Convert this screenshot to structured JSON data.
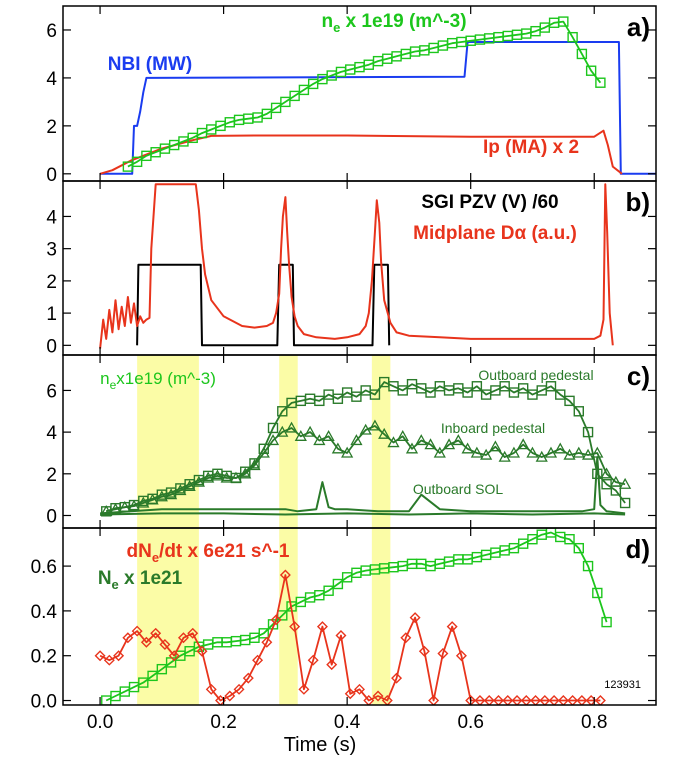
{
  "figure": {
    "xlabel": "Time (s)",
    "x_ticks": [
      0.0,
      0.2,
      0.4,
      0.6,
      0.8
    ],
    "x_tick_labels": [
      "0.0",
      "0.2",
      "0.4",
      "0.6",
      "0.8"
    ],
    "xlim": [
      -0.06,
      0.9
    ],
    "shot_number": "123931",
    "highlight_bands": [
      [
        0.06,
        0.16
      ],
      [
        0.29,
        0.32
      ],
      [
        0.44,
        0.47
      ]
    ],
    "colors": {
      "blue": "#1a3cf0",
      "green": "#1cc61c",
      "red": "#e8341c",
      "darkgreen": "#2a7a2a",
      "black": "#000000",
      "highlight": "#fbfca6"
    }
  },
  "chart_data": [
    {
      "panel": "a)",
      "type": "line",
      "ylim": [
        -0.3,
        7.0
      ],
      "y_ticks": [
        0,
        2,
        4,
        6
      ],
      "y_tick_labels": [
        "0",
        "2",
        "4",
        "6"
      ],
      "labels": [
        {
          "text": "n",
          "sub": "e",
          "rest": " x 1e19 (m^-3)",
          "color": "#1cc61c"
        },
        {
          "text": "NBI (MW)",
          "sub": "",
          "rest": "",
          "color": "#1a3cf0"
        },
        {
          "text": "Ip (MA) x 2",
          "sub": "",
          "rest": "",
          "color": "#e8341c"
        }
      ],
      "series": [
        {
          "color": "#1a3cf0",
          "style": "line",
          "x": [
            0.0,
            0.052,
            0.055,
            0.06,
            0.065,
            0.07,
            0.075,
            0.08,
            0.59,
            0.595,
            0.84,
            0.843,
            0.9
          ],
          "y": [
            0.0,
            0.0,
            2.0,
            2.0,
            2.6,
            3.4,
            4.0,
            4.0,
            4.05,
            5.5,
            5.5,
            0.0,
            0.0
          ]
        },
        {
          "color": "#e8341c",
          "style": "line",
          "x": [
            0.0,
            0.02,
            0.05,
            0.1,
            0.15,
            0.18,
            0.25,
            0.4,
            0.6,
            0.8,
            0.815,
            0.822,
            0.83,
            0.845
          ],
          "y": [
            0.0,
            0.15,
            0.55,
            1.05,
            1.4,
            1.58,
            1.6,
            1.6,
            1.55,
            1.55,
            1.8,
            1.2,
            0.3,
            0.0
          ]
        },
        {
          "color": "#1cc61c",
          "style": "squares",
          "x": [
            0.045,
            0.06,
            0.075,
            0.09,
            0.105,
            0.12,
            0.135,
            0.15,
            0.165,
            0.18,
            0.195,
            0.21,
            0.225,
            0.24,
            0.255,
            0.27,
            0.285,
            0.3,
            0.315,
            0.33,
            0.345,
            0.36,
            0.375,
            0.39,
            0.405,
            0.42,
            0.435,
            0.45,
            0.465,
            0.48,
            0.495,
            0.51,
            0.525,
            0.54,
            0.555,
            0.57,
            0.585,
            0.6,
            0.615,
            0.63,
            0.645,
            0.66,
            0.675,
            0.69,
            0.705,
            0.72,
            0.735,
            0.75,
            0.765,
            0.78,
            0.795,
            0.81
          ],
          "y": [
            0.3,
            0.5,
            0.75,
            0.9,
            1.05,
            1.2,
            1.35,
            1.5,
            1.7,
            1.85,
            2.0,
            2.15,
            2.25,
            2.3,
            2.35,
            2.5,
            2.75,
            3.0,
            3.25,
            3.5,
            3.75,
            3.95,
            4.1,
            4.25,
            4.35,
            4.45,
            4.55,
            4.7,
            4.8,
            4.9,
            5.0,
            5.1,
            5.15,
            5.25,
            5.35,
            5.45,
            5.5,
            5.55,
            5.6,
            5.65,
            5.7,
            5.75,
            5.8,
            5.85,
            5.95,
            6.1,
            6.3,
            6.35,
            5.7,
            5.0,
            4.3,
            3.8
          ]
        }
      ]
    },
    {
      "panel": "b)",
      "type": "line",
      "ylim": [
        -0.3,
        5.1
      ],
      "y_ticks": [
        0,
        1,
        2,
        3,
        4
      ],
      "y_tick_labels": [
        "0",
        "1",
        "2",
        "3",
        "4"
      ],
      "labels": [
        {
          "text": "SGI PZV (V) /60",
          "sub": "",
          "rest": "",
          "color": "#000000"
        },
        {
          "text": "Midplane D",
          "sub": "",
          "rest": "α (a.u.)",
          "color": "#e8341c"
        }
      ],
      "series": [
        {
          "color": "#000000",
          "style": "line",
          "x": [
            0.06,
            0.062,
            0.163,
            0.165,
            0.287,
            0.29,
            0.312,
            0.314,
            0.441,
            0.444,
            0.466,
            0.468
          ],
          "y": [
            0.0,
            2.5,
            2.5,
            0.0,
            0.0,
            2.5,
            2.5,
            0.0,
            0.0,
            2.5,
            2.5,
            0.0
          ]
        },
        {
          "color": "#e8341c",
          "style": "line",
          "x": [
            0.0,
            0.005,
            0.01,
            0.015,
            0.02,
            0.025,
            0.03,
            0.035,
            0.04,
            0.045,
            0.05,
            0.055,
            0.06,
            0.065,
            0.07,
            0.075,
            0.08,
            0.083,
            0.09,
            0.1,
            0.13,
            0.155,
            0.16,
            0.165,
            0.17,
            0.18,
            0.2,
            0.23,
            0.25,
            0.27,
            0.28,
            0.285,
            0.29,
            0.293,
            0.296,
            0.3,
            0.303,
            0.306,
            0.31,
            0.315,
            0.32,
            0.33,
            0.35,
            0.38,
            0.4,
            0.42,
            0.43,
            0.435,
            0.44,
            0.445,
            0.448,
            0.452,
            0.455,
            0.46,
            0.47,
            0.48,
            0.5,
            0.55,
            0.6,
            0.65,
            0.7,
            0.75,
            0.8,
            0.81,
            0.815,
            0.818,
            0.821,
            0.825,
            0.83
          ],
          "y": [
            -0.1,
            0.8,
            0.2,
            1.1,
            0.4,
            1.4,
            0.5,
            1.2,
            0.6,
            1.5,
            0.7,
            1.3,
            0.6,
            0.9,
            0.7,
            0.8,
            0.85,
            3.0,
            5.0,
            5.0,
            5.0,
            5.0,
            4.2,
            3.0,
            2.2,
            1.4,
            0.9,
            0.6,
            0.55,
            0.6,
            0.7,
            1.0,
            1.6,
            3.0,
            4.0,
            4.6,
            3.5,
            2.5,
            1.5,
            0.9,
            0.6,
            0.35,
            0.25,
            0.2,
            0.25,
            0.35,
            0.6,
            1.0,
            2.0,
            3.5,
            4.5,
            3.8,
            2.6,
            1.4,
            0.7,
            0.4,
            0.3,
            0.25,
            0.2,
            0.2,
            0.2,
            0.2,
            0.2,
            0.3,
            0.8,
            5.0,
            3.5,
            1.0,
            0.0
          ]
        }
      ]
    },
    {
      "panel": "c)",
      "type": "line",
      "ylim": [
        -0.6,
        7.7
      ],
      "y_ticks": [
        0,
        2,
        4,
        6
      ],
      "y_tick_labels": [
        "0",
        "2",
        "4",
        "6"
      ],
      "labels": [
        {
          "text": "n",
          "sub": "e",
          "rest": "x1e19 (m^-3)",
          "color": "#1cc61c"
        },
        {
          "text": "Outboard pedestal",
          "sub": "",
          "rest": "",
          "color": "#2a7a2a"
        },
        {
          "text": "Inboard pedestal",
          "sub": "",
          "rest": "",
          "color": "#2a7a2a"
        },
        {
          "text": "Outboard SOL",
          "sub": "",
          "rest": "",
          "color": "#2a7a2a"
        }
      ],
      "series": [
        {
          "color": "#2a7a2a",
          "style": "squares",
          "x": [
            0.01,
            0.025,
            0.04,
            0.055,
            0.07,
            0.085,
            0.1,
            0.115,
            0.13,
            0.145,
            0.16,
            0.175,
            0.19,
            0.205,
            0.22,
            0.235,
            0.25,
            0.265,
            0.28,
            0.295,
            0.31,
            0.325,
            0.34,
            0.355,
            0.37,
            0.385,
            0.4,
            0.415,
            0.43,
            0.445,
            0.46,
            0.475,
            0.49,
            0.505,
            0.52,
            0.535,
            0.55,
            0.565,
            0.58,
            0.595,
            0.61,
            0.625,
            0.64,
            0.655,
            0.67,
            0.685,
            0.7,
            0.715,
            0.73,
            0.745,
            0.76,
            0.775,
            0.79,
            0.805,
            0.82,
            0.835,
            0.85
          ],
          "y": [
            0.2,
            0.35,
            0.4,
            0.5,
            0.7,
            0.8,
            1.0,
            1.1,
            1.3,
            1.5,
            1.7,
            1.9,
            2.0,
            1.9,
            1.8,
            2.1,
            2.5,
            3.2,
            4.2,
            5.0,
            5.4,
            5.5,
            5.6,
            5.5,
            5.8,
            5.6,
            5.9,
            5.7,
            6.0,
            5.8,
            6.4,
            6.2,
            6.0,
            6.3,
            6.1,
            5.9,
            6.2,
            6.0,
            6.1,
            5.9,
            6.2,
            5.8,
            6.0,
            6.2,
            5.9,
            6.1,
            5.8,
            6.0,
            6.2,
            5.8,
            5.5,
            5.0,
            4.0,
            2.0,
            1.5,
            1.2,
            0.6
          ]
        },
        {
          "color": "#2a7a2a",
          "style": "triangles",
          "x": [
            0.01,
            0.025,
            0.04,
            0.055,
            0.07,
            0.085,
            0.1,
            0.115,
            0.13,
            0.145,
            0.16,
            0.175,
            0.19,
            0.205,
            0.22,
            0.235,
            0.25,
            0.265,
            0.28,
            0.295,
            0.31,
            0.325,
            0.34,
            0.355,
            0.37,
            0.385,
            0.4,
            0.415,
            0.43,
            0.445,
            0.46,
            0.475,
            0.49,
            0.505,
            0.52,
            0.535,
            0.55,
            0.565,
            0.58,
            0.595,
            0.61,
            0.625,
            0.64,
            0.655,
            0.67,
            0.685,
            0.7,
            0.715,
            0.73,
            0.745,
            0.76,
            0.775,
            0.79,
            0.805,
            0.82,
            0.835,
            0.85
          ],
          "y": [
            0.2,
            0.3,
            0.4,
            0.45,
            0.6,
            0.75,
            0.9,
            1.0,
            1.2,
            1.4,
            1.6,
            1.8,
            1.9,
            1.8,
            1.8,
            2.0,
            2.4,
            3.0,
            3.6,
            4.0,
            4.2,
            3.8,
            4.0,
            3.6,
            3.8,
            3.2,
            3.0,
            3.6,
            4.1,
            4.3,
            3.9,
            3.5,
            3.8,
            3.2,
            3.6,
            3.4,
            3.0,
            3.4,
            3.6,
            3.2,
            3.0,
            2.9,
            3.3,
            2.8,
            3.0,
            3.4,
            3.0,
            2.8,
            3.0,
            3.2,
            2.9,
            3.0,
            2.9,
            3.0,
            2.0,
            1.6,
            1.5
          ]
        },
        {
          "color": "#2a7a2a",
          "style": "line",
          "x": [
            0.0,
            0.05,
            0.1,
            0.15,
            0.2,
            0.25,
            0.3,
            0.32,
            0.35,
            0.36,
            0.37,
            0.38,
            0.4,
            0.45,
            0.5,
            0.52,
            0.55,
            0.6,
            0.7,
            0.78,
            0.8,
            0.805,
            0.81,
            0.82,
            0.85
          ],
          "y": [
            0.1,
            0.2,
            0.3,
            0.3,
            0.3,
            0.3,
            0.3,
            0.2,
            0.3,
            1.6,
            0.4,
            0.3,
            0.3,
            0.2,
            0.2,
            1.0,
            0.3,
            0.2,
            0.2,
            0.2,
            0.3,
            2.8,
            0.5,
            0.2,
            0.1
          ]
        },
        {
          "color": "#2a7a2a",
          "style": "line",
          "x": [
            0.0,
            0.1,
            0.2,
            0.3,
            0.4,
            0.5,
            0.6,
            0.7,
            0.8,
            0.85
          ],
          "y": [
            0.05,
            0.1,
            0.1,
            0.05,
            0.1,
            0.05,
            0.1,
            0.05,
            0.1,
            0.05
          ]
        }
      ]
    },
    {
      "panel": "d)",
      "type": "line",
      "ylim": [
        -0.02,
        0.77
      ],
      "y_ticks": [
        0.0,
        0.2,
        0.4,
        0.6
      ],
      "y_tick_labels": [
        "0.0",
        "0.2",
        "0.4",
        "0.6"
      ],
      "labels": [
        {
          "text": "dN",
          "sub": "e",
          "rest": "/dt x 6e21 s^-1",
          "color": "#e8341c"
        },
        {
          "text": "N",
          "sub": "e",
          "rest": " x 1e21",
          "color": "#2a7a2a"
        }
      ],
      "series": [
        {
          "color": "#1cc61c",
          "style": "squares",
          "x": [
            0.01,
            0.025,
            0.04,
            0.055,
            0.07,
            0.085,
            0.1,
            0.115,
            0.13,
            0.145,
            0.16,
            0.175,
            0.19,
            0.205,
            0.22,
            0.235,
            0.25,
            0.265,
            0.28,
            0.295,
            0.31,
            0.325,
            0.34,
            0.355,
            0.37,
            0.385,
            0.4,
            0.415,
            0.43,
            0.445,
            0.46,
            0.475,
            0.49,
            0.505,
            0.52,
            0.535,
            0.55,
            0.565,
            0.58,
            0.595,
            0.61,
            0.625,
            0.64,
            0.655,
            0.67,
            0.685,
            0.7,
            0.715,
            0.73,
            0.745,
            0.76,
            0.775,
            0.79,
            0.805,
            0.82
          ],
          "y": [
            0.0,
            0.02,
            0.04,
            0.06,
            0.08,
            0.11,
            0.14,
            0.17,
            0.2,
            0.22,
            0.24,
            0.25,
            0.26,
            0.26,
            0.265,
            0.27,
            0.28,
            0.3,
            0.34,
            0.38,
            0.42,
            0.44,
            0.46,
            0.47,
            0.49,
            0.52,
            0.55,
            0.57,
            0.58,
            0.585,
            0.59,
            0.595,
            0.6,
            0.61,
            0.61,
            0.6,
            0.61,
            0.62,
            0.63,
            0.63,
            0.64,
            0.65,
            0.66,
            0.67,
            0.68,
            0.7,
            0.72,
            0.74,
            0.75,
            0.73,
            0.72,
            0.68,
            0.6,
            0.48,
            0.35
          ]
        },
        {
          "color": "#e8341c",
          "style": "diamonds",
          "x": [
            0.0,
            0.015,
            0.03,
            0.045,
            0.06,
            0.075,
            0.09,
            0.105,
            0.12,
            0.135,
            0.15,
            0.165,
            0.18,
            0.195,
            0.21,
            0.225,
            0.24,
            0.255,
            0.27,
            0.285,
            0.3,
            0.315,
            0.33,
            0.345,
            0.36,
            0.375,
            0.39,
            0.405,
            0.42,
            0.435,
            0.45,
            0.465,
            0.48,
            0.495,
            0.51,
            0.525,
            0.54,
            0.555,
            0.57,
            0.585,
            0.6,
            0.615,
            0.63,
            0.645,
            0.66,
            0.675,
            0.69,
            0.705,
            0.72,
            0.735,
            0.75,
            0.765,
            0.78,
            0.795,
            0.81
          ],
          "y": [
            0.2,
            0.18,
            0.2,
            0.28,
            0.31,
            0.26,
            0.3,
            0.25,
            0.2,
            0.28,
            0.3,
            0.22,
            0.05,
            0.0,
            0.02,
            0.05,
            0.1,
            0.18,
            0.26,
            0.36,
            0.56,
            0.33,
            0.05,
            0.18,
            0.33,
            0.16,
            0.29,
            0.03,
            0.05,
            0.0,
            0.02,
            0.0,
            0.1,
            0.28,
            0.37,
            0.22,
            0.0,
            0.21,
            0.33,
            0.2,
            0.0,
            0.0,
            0.0,
            0.0,
            0.0,
            0.0,
            0.0,
            0.0,
            0.0,
            0.0,
            0.0,
            0.0,
            0.0,
            0.0,
            0.0
          ]
        }
      ]
    }
  ]
}
